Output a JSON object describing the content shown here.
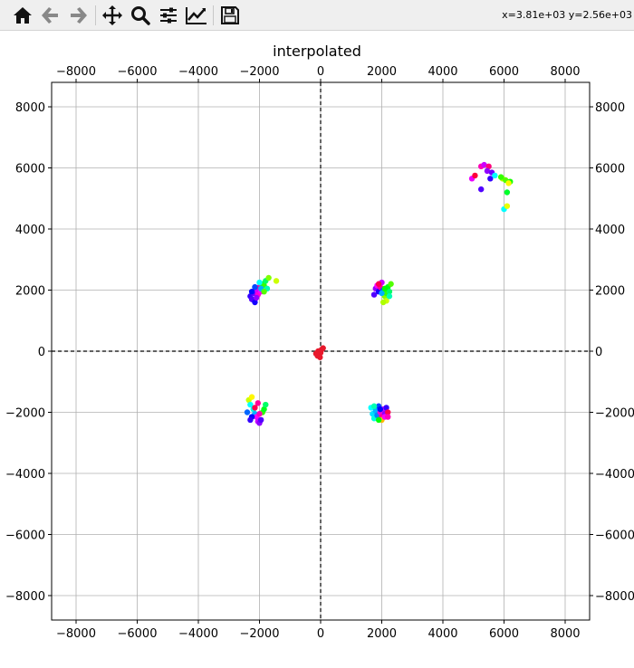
{
  "toolbar": {
    "tools": [
      {
        "name": "home-icon",
        "tooltip": "Reset original view"
      },
      {
        "name": "back-arrow-icon",
        "tooltip": "Back to previous view"
      },
      {
        "name": "forward-arrow-icon",
        "tooltip": "Forward to next view"
      },
      {
        "name": "pan-icon",
        "tooltip": "Pan axes"
      },
      {
        "name": "zoom-icon",
        "tooltip": "Zoom to rectangle"
      },
      {
        "name": "configure-subplots-icon",
        "tooltip": "Configure subplots"
      },
      {
        "name": "edit-axis-icon",
        "tooltip": "Edit axis, curve and image parameters"
      },
      {
        "name": "save-icon",
        "tooltip": "Save the figure"
      }
    ],
    "coords_text": "x=3.81e+03 y=2.56e+03"
  },
  "colors": {
    "toolbar_bg": "#efefef",
    "grid": "#b0b0b0",
    "axis": "#000000",
    "center_points": "#e8192c"
  },
  "chart_data": {
    "type": "scatter",
    "title": "interpolated",
    "xlabel": "",
    "ylabel": "",
    "xlim": [
      -8800,
      8800
    ],
    "ylim": [
      -8800,
      8800
    ],
    "xticks": [
      -8000,
      -6000,
      -4000,
      -2000,
      0,
      2000,
      4000,
      6000,
      8000
    ],
    "yticks": [
      -8000,
      -6000,
      -4000,
      -2000,
      0,
      2000,
      4000,
      6000,
      8000
    ],
    "xtick_labels": [
      "−8000",
      "−6000",
      "−4000",
      "−2000",
      "0",
      "2000",
      "4000",
      "6000",
      "8000"
    ],
    "ytick_labels": [
      "−8000",
      "−6000",
      "−4000",
      "−2000",
      "0",
      "2000",
      "4000",
      "6000",
      "8000"
    ],
    "grid": true,
    "zero_lines": "dashed",
    "clusters": [
      {
        "center": [
          -2000,
          2000
        ],
        "count": 34
      },
      {
        "center": [
          2000,
          2000
        ],
        "count": 30
      },
      {
        "center": [
          -2100,
          -2000
        ],
        "count": 32
      },
      {
        "center": [
          2000,
          -2000
        ],
        "count": 30
      },
      {
        "center": [
          5600,
          5600
        ],
        "count": 18
      }
    ],
    "points": [
      {
        "x": -2300,
        "y": 1800,
        "hue": 0.7
      },
      {
        "x": -2250,
        "y": 1700,
        "hue": 0.72
      },
      {
        "x": -2200,
        "y": 1900,
        "hue": 0.74
      },
      {
        "x": -2150,
        "y": 1600,
        "hue": 0.68
      },
      {
        "x": -2100,
        "y": 2000,
        "hue": 0.8
      },
      {
        "x": -2050,
        "y": 1850,
        "hue": 0.86
      },
      {
        "x": -2000,
        "y": 2100,
        "hue": 0.9
      },
      {
        "x": -1950,
        "y": 1950,
        "hue": 0.83
      },
      {
        "x": -1900,
        "y": 2200,
        "hue": 0.35
      },
      {
        "x": -1850,
        "y": 2150,
        "hue": 0.3
      },
      {
        "x": -1800,
        "y": 2300,
        "hue": 0.4
      },
      {
        "x": -1750,
        "y": 2050,
        "hue": 0.45
      },
      {
        "x": -1700,
        "y": 2400,
        "hue": 0.25
      },
      {
        "x": -1450,
        "y": 2300,
        "hue": 0.2
      },
      {
        "x": -2000,
        "y": 2250,
        "hue": 0.5
      },
      {
        "x": -1950,
        "y": 2050,
        "hue": 0.55
      },
      {
        "x": -2150,
        "y": 2100,
        "hue": 0.62
      },
      {
        "x": -2250,
        "y": 1950,
        "hue": 0.66
      },
      {
        "x": -2100,
        "y": 1750,
        "hue": 0.76
      },
      {
        "x": -1850,
        "y": 1950,
        "hue": 0.28
      },
      {
        "x": 1750,
        "y": 1850,
        "hue": 0.72
      },
      {
        "x": 1800,
        "y": 2050,
        "hue": 0.76
      },
      {
        "x": 1850,
        "y": 2150,
        "hue": 0.84
      },
      {
        "x": 1900,
        "y": 1950,
        "hue": 0.68
      },
      {
        "x": 1950,
        "y": 2100,
        "hue": 0.9
      },
      {
        "x": 2000,
        "y": 2250,
        "hue": 0.8
      },
      {
        "x": 2050,
        "y": 2000,
        "hue": 0.62
      },
      {
        "x": 2100,
        "y": 1800,
        "hue": 0.25
      },
      {
        "x": 2150,
        "y": 1900,
        "hue": 0.3
      },
      {
        "x": 2200,
        "y": 2100,
        "hue": 0.35
      },
      {
        "x": 2250,
        "y": 1950,
        "hue": 0.4
      },
      {
        "x": 2300,
        "y": 2200,
        "hue": 0.28
      },
      {
        "x": 2150,
        "y": 1650,
        "hue": 0.2
      },
      {
        "x": 2050,
        "y": 1600,
        "hue": 0.22
      },
      {
        "x": 2250,
        "y": 1800,
        "hue": 0.45
      },
      {
        "x": 1900,
        "y": 2200,
        "hue": 0.95
      },
      {
        "x": 2000,
        "y": 1900,
        "hue": 0.55
      },
      {
        "x": 2100,
        "y": 2050,
        "hue": 0.33
      },
      {
        "x": -2350,
        "y": -1600,
        "hue": 0.2
      },
      {
        "x": -2300,
        "y": -1750,
        "hue": 0.5
      },
      {
        "x": -2250,
        "y": -1500,
        "hue": 0.16
      },
      {
        "x": -2200,
        "y": -1900,
        "hue": 0.48
      },
      {
        "x": -2150,
        "y": -2050,
        "hue": 0.55
      },
      {
        "x": -2400,
        "y": -2000,
        "hue": 0.6
      },
      {
        "x": -2100,
        "y": -2150,
        "hue": 0.84
      },
      {
        "x": -2050,
        "y": -2300,
        "hue": 0.8
      },
      {
        "x": -2000,
        "y": -2350,
        "hue": 0.76
      },
      {
        "x": -1950,
        "y": -2250,
        "hue": 0.72
      },
      {
        "x": -1900,
        "y": -2000,
        "hue": 0.3
      },
      {
        "x": -1850,
        "y": -1900,
        "hue": 0.35
      },
      {
        "x": -1800,
        "y": -1750,
        "hue": 0.4
      },
      {
        "x": -2050,
        "y": -1700,
        "hue": 0.9
      },
      {
        "x": -2250,
        "y": -2150,
        "hue": 0.66
      },
      {
        "x": -2150,
        "y": -1850,
        "hue": 0.95
      },
      {
        "x": -2000,
        "y": -2050,
        "hue": 0.88
      },
      {
        "x": -2300,
        "y": -2250,
        "hue": 0.7
      },
      {
        "x": 1650,
        "y": -1850,
        "hue": 0.5
      },
      {
        "x": 1700,
        "y": -2050,
        "hue": 0.52
      },
      {
        "x": 1750,
        "y": -2200,
        "hue": 0.48
      },
      {
        "x": 1800,
        "y": -1950,
        "hue": 0.55
      },
      {
        "x": 1850,
        "y": -2100,
        "hue": 0.58
      },
      {
        "x": 1900,
        "y": -1800,
        "hue": 0.62
      },
      {
        "x": 1950,
        "y": -2000,
        "hue": 0.86
      },
      {
        "x": 2000,
        "y": -2150,
        "hue": 0.9
      },
      {
        "x": 2050,
        "y": -1900,
        "hue": 0.8
      },
      {
        "x": 2100,
        "y": -2050,
        "hue": 0.76
      },
      {
        "x": 2150,
        "y": -1850,
        "hue": 0.7
      },
      {
        "x": 2200,
        "y": -2000,
        "hue": 0.95
      },
      {
        "x": 2000,
        "y": -2250,
        "hue": 0.12
      },
      {
        "x": 1900,
        "y": -2250,
        "hue": 0.34
      },
      {
        "x": 1750,
        "y": -1800,
        "hue": 0.45
      },
      {
        "x": 2100,
        "y": -2150,
        "hue": 0.84
      },
      {
        "x": 1950,
        "y": -1900,
        "hue": 0.66
      },
      {
        "x": 2200,
        "y": -2150,
        "hue": 0.88
      },
      {
        "x": 4950,
        "y": 5650,
        "hue": 0.82
      },
      {
        "x": 5050,
        "y": 5750,
        "hue": 0.96
      },
      {
        "x": 5250,
        "y": 6050,
        "hue": 0.88
      },
      {
        "x": 5350,
        "y": 6100,
        "hue": 0.8
      },
      {
        "x": 5500,
        "y": 6050,
        "hue": 0.92
      },
      {
        "x": 5450,
        "y": 5900,
        "hue": 0.76
      },
      {
        "x": 5600,
        "y": 5850,
        "hue": 0.74
      },
      {
        "x": 5550,
        "y": 5650,
        "hue": 0.7
      },
      {
        "x": 5700,
        "y": 5750,
        "hue": 0.5
      },
      {
        "x": 5950,
        "y": 5650,
        "hue": 0.22
      },
      {
        "x": 6050,
        "y": 5600,
        "hue": 0.28
      },
      {
        "x": 6200,
        "y": 5550,
        "hue": 0.32
      },
      {
        "x": 6150,
        "y": 5500,
        "hue": 0.16
      },
      {
        "x": 6100,
        "y": 5200,
        "hue": 0.36
      },
      {
        "x": 6000,
        "y": 4650,
        "hue": 0.5
      },
      {
        "x": 6100,
        "y": 4750,
        "hue": 0.18
      },
      {
        "x": 5250,
        "y": 5300,
        "hue": 0.72
      },
      {
        "x": 5900,
        "y": 5700,
        "hue": 0.3
      }
    ],
    "center_points": [
      {
        "x": -100,
        "y": -150
      },
      {
        "x": -50,
        "y": -100
      },
      {
        "x": 0,
        "y": -50
      },
      {
        "x": -80,
        "y": 0
      },
      {
        "x": 30,
        "y": 50
      },
      {
        "x": 80,
        "y": 100
      },
      {
        "x": -150,
        "y": -80
      },
      {
        "x": -20,
        "y": -200
      }
    ]
  }
}
